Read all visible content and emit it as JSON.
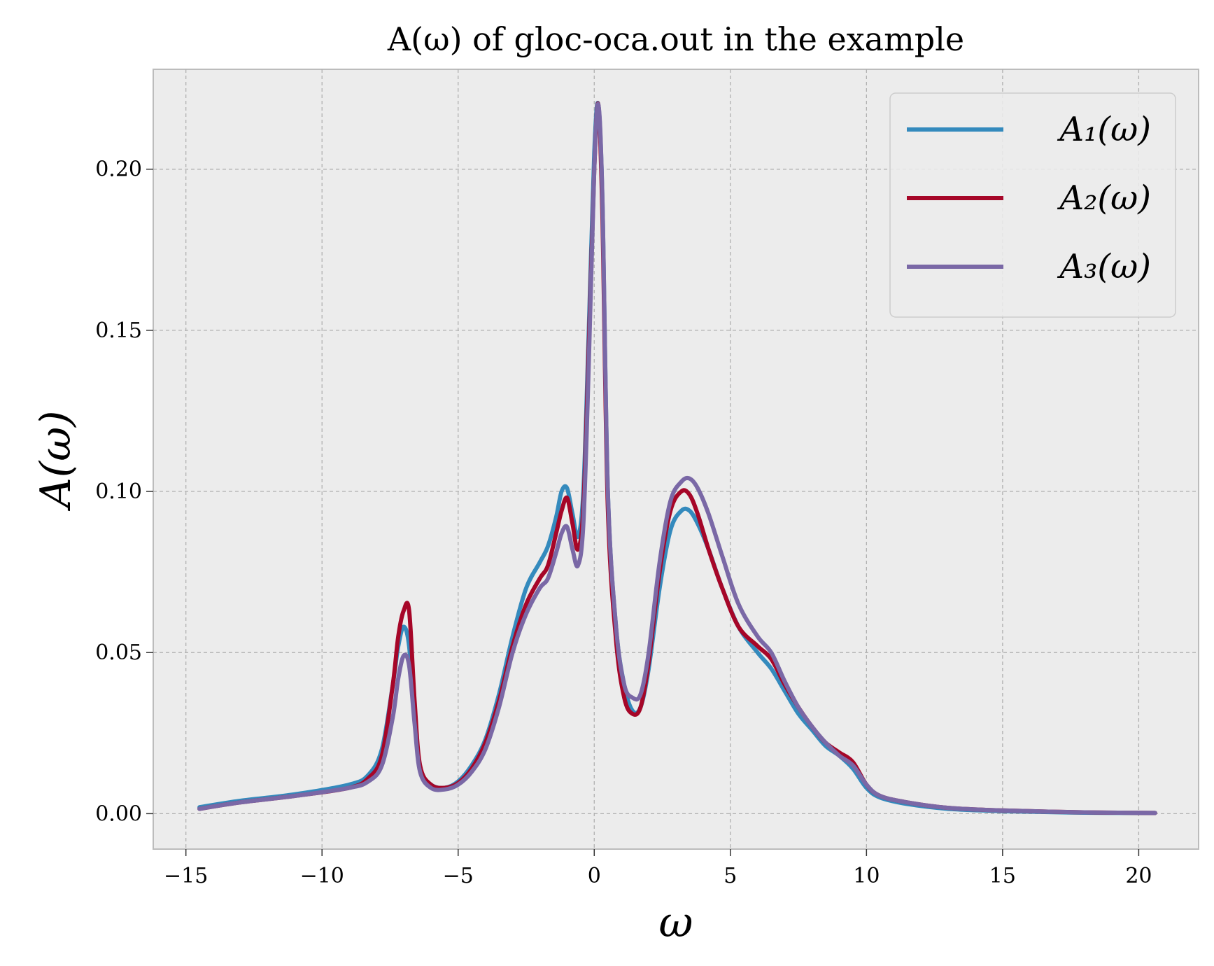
{
  "chart_data": {
    "type": "line",
    "title": "A(ω) of gloc-oca.out in the example",
    "xlabel": "ω",
    "ylabel": "A(ω)",
    "xlim": [
      -16.2,
      22.2
    ],
    "ylim": [
      -0.011,
      0.231
    ],
    "xticks": [
      -15,
      -10,
      -5,
      0,
      5,
      10,
      15,
      20
    ],
    "xtick_labels": [
      "−15",
      "−10",
      "−5",
      "0",
      "5",
      "10",
      "15",
      "20"
    ],
    "yticks": [
      0.0,
      0.05,
      0.1,
      0.15,
      0.2
    ],
    "ytick_labels": [
      "0.00",
      "0.05",
      "0.10",
      "0.15",
      "0.20"
    ],
    "grid": true,
    "legend_position": "upper-right",
    "background": "#ececec",
    "x": [
      -14.5,
      -13,
      -11,
      -9,
      -8.3,
      -7.8,
      -7.4,
      -7.2,
      -7.0,
      -6.8,
      -6.6,
      -6.4,
      -6.0,
      -5.5,
      -5.0,
      -4.5,
      -4.0,
      -3.5,
      -3.0,
      -2.5,
      -2.0,
      -1.7,
      -1.4,
      -1.2,
      -1.0,
      -0.8,
      -0.6,
      -0.4,
      -0.2,
      0.0,
      0.15,
      0.3,
      0.5,
      0.8,
      1.1,
      1.4,
      1.7,
      2.0,
      2.4,
      2.8,
      3.2,
      3.5,
      3.8,
      4.2,
      4.7,
      5.3,
      6.0,
      6.5,
      7.0,
      7.5,
      8.0,
      8.5,
      9.0,
      9.5,
      10.0,
      10.5,
      11.5,
      13.0,
      15.0,
      18.0,
      20.6
    ],
    "series": [
      {
        "name": "A₁(ω)",
        "color": "#348abd",
        "values": [
          0.002,
          0.004,
          0.006,
          0.009,
          0.012,
          0.02,
          0.04,
          0.052,
          0.058,
          0.052,
          0.03,
          0.014,
          0.009,
          0.008,
          0.01,
          0.015,
          0.023,
          0.037,
          0.055,
          0.07,
          0.078,
          0.083,
          0.092,
          0.1,
          0.101,
          0.093,
          0.086,
          0.1,
          0.15,
          0.205,
          0.22,
          0.19,
          0.1,
          0.058,
          0.04,
          0.032,
          0.033,
          0.045,
          0.07,
          0.088,
          0.094,
          0.094,
          0.09,
          0.082,
          0.07,
          0.058,
          0.05,
          0.045,
          0.038,
          0.031,
          0.026,
          0.021,
          0.018,
          0.014,
          0.008,
          0.005,
          0.003,
          0.0015,
          0.0008,
          0.0003,
          0.0002
        ]
      },
      {
        "name": "A₂(ω)",
        "color": "#a60628",
        "values": [
          0.0015,
          0.0035,
          0.0055,
          0.008,
          0.011,
          0.018,
          0.04,
          0.055,
          0.063,
          0.063,
          0.035,
          0.015,
          0.009,
          0.008,
          0.0095,
          0.014,
          0.022,
          0.035,
          0.052,
          0.065,
          0.073,
          0.077,
          0.087,
          0.094,
          0.098,
          0.09,
          0.082,
          0.095,
          0.145,
          0.2,
          0.22,
          0.185,
          0.095,
          0.054,
          0.036,
          0.031,
          0.033,
          0.047,
          0.075,
          0.094,
          0.1,
          0.099,
          0.093,
          0.082,
          0.07,
          0.058,
          0.052,
          0.048,
          0.04,
          0.033,
          0.027,
          0.022,
          0.019,
          0.016,
          0.009,
          0.0055,
          0.0035,
          0.0018,
          0.001,
          0.0004,
          0.0002
        ]
      },
      {
        "name": "A₃(ω)",
        "color": "#7a68a6",
        "values": [
          0.0015,
          0.0035,
          0.0055,
          0.008,
          0.01,
          0.015,
          0.03,
          0.042,
          0.049,
          0.046,
          0.028,
          0.013,
          0.008,
          0.0075,
          0.009,
          0.013,
          0.02,
          0.033,
          0.05,
          0.062,
          0.07,
          0.073,
          0.081,
          0.087,
          0.089,
          0.082,
          0.077,
          0.09,
          0.14,
          0.2,
          0.22,
          0.19,
          0.1,
          0.058,
          0.04,
          0.036,
          0.037,
          0.05,
          0.078,
          0.097,
          0.103,
          0.104,
          0.101,
          0.093,
          0.08,
          0.065,
          0.055,
          0.05,
          0.041,
          0.033,
          0.027,
          0.022,
          0.018,
          0.015,
          0.009,
          0.0055,
          0.0035,
          0.0018,
          0.001,
          0.0004,
          0.0002
        ]
      }
    ]
  }
}
